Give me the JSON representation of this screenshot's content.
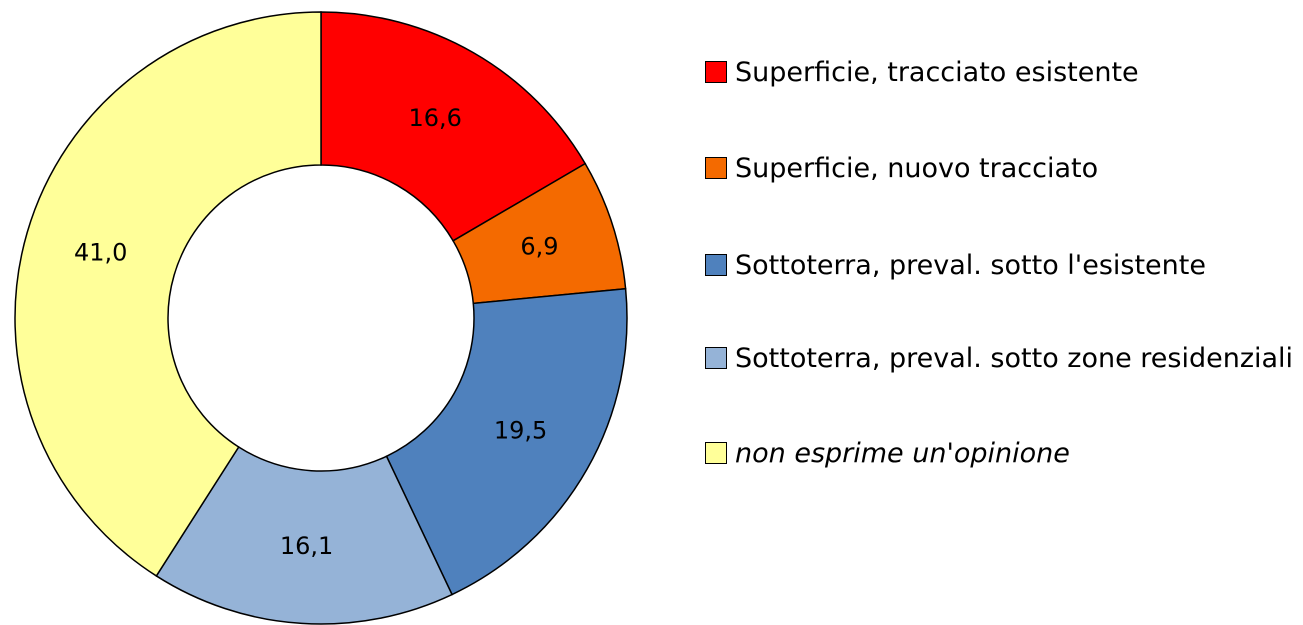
{
  "chart_data": {
    "type": "donut",
    "categories": [
      "Superficie, tracciato esistente",
      "Superficie, nuovo tracciato",
      "Sottoterra, preval. sotto l'esistente",
      "Sottoterra, preval. sotto zone residenziali",
      "non esprime un'opinione"
    ],
    "values": [
      16.6,
      6.9,
      19.5,
      16.1,
      41.0
    ],
    "value_labels": [
      "16,6",
      "6,9",
      "19,5",
      "16,1",
      "41,0"
    ],
    "colors": [
      "#ff0000",
      "#f46a00",
      "#4f81bd",
      "#95b3d7",
      "#ffff99"
    ],
    "legend": "right"
  }
}
